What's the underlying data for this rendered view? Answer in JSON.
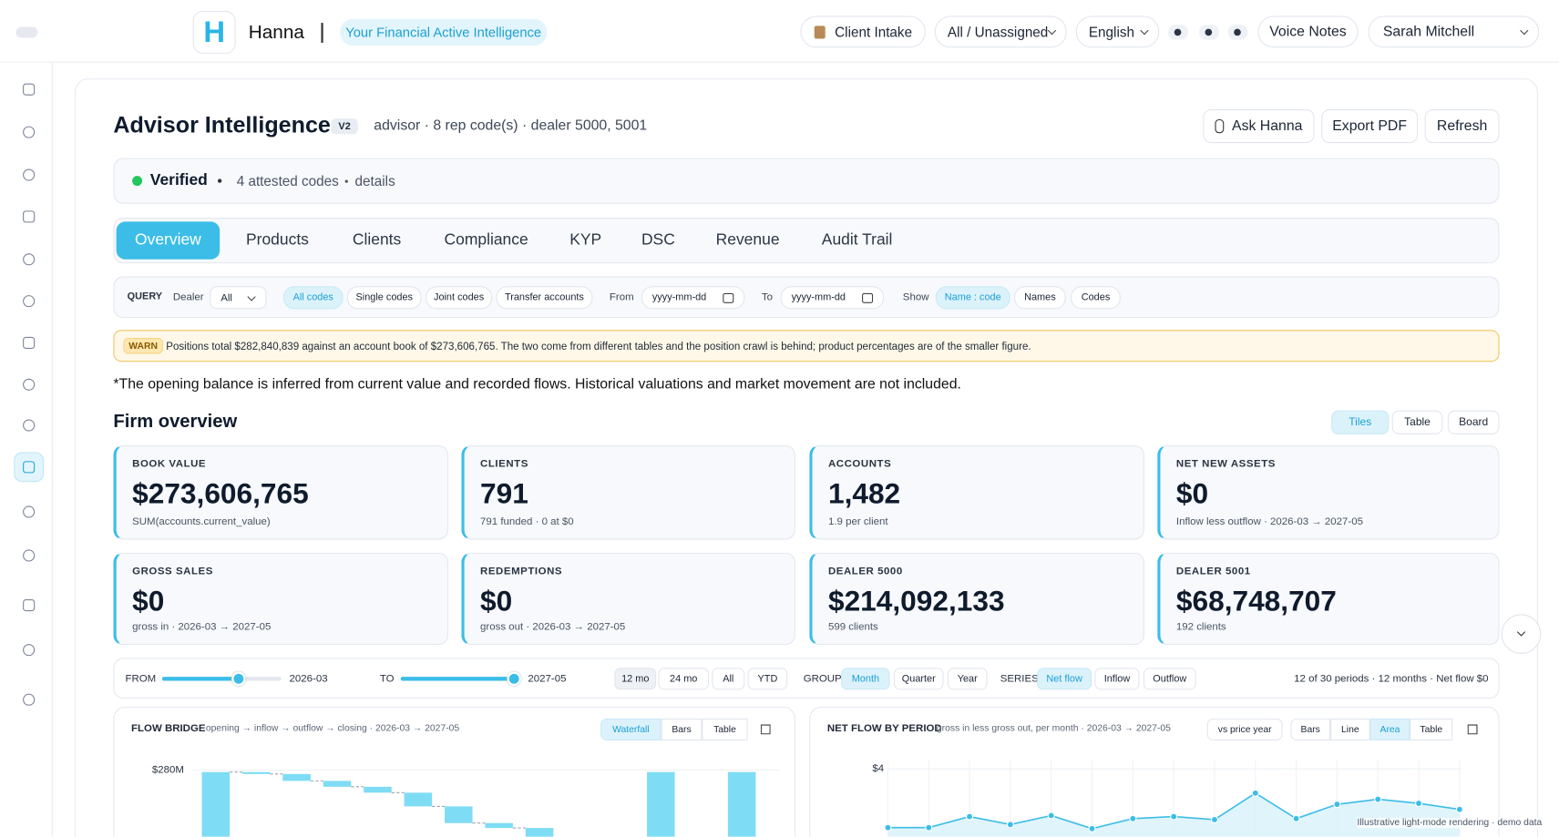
{
  "header": {
    "logo": "H",
    "app_name": "Hanna",
    "tagline": "Your Financial Active Intelligence",
    "client_intake": "Client Intake",
    "assignment": "All / Unassigned",
    "language": "English",
    "voice_notes": "Voice Notes",
    "user": "Sarah Mitchell"
  },
  "page": {
    "title": "Advisor Intelligence",
    "version": "V2",
    "subtitle": "advisor · 8 rep code(s) · dealer 5000, 5001",
    "actions": [
      "Ask Hanna",
      "Export PDF",
      "Refresh"
    ]
  },
  "verification": {
    "status": "Verified",
    "codes": "4 attested codes",
    "details": "details"
  },
  "tabs": {
    "items": [
      "Overview",
      "Products",
      "Clients",
      "Compliance",
      "KYP",
      "DSC",
      "Revenue",
      "Audit Trail"
    ],
    "active": 0
  },
  "query": {
    "label": "QUERY",
    "dealer_label": "Dealer",
    "dealer_value": "All",
    "code_filters": [
      "All codes",
      "Single codes",
      "Joint codes",
      "Transfer accounts"
    ],
    "code_filter_active": 0,
    "from_label": "From",
    "from_placeholder": "yyyy-mm-dd",
    "to_label": "To",
    "to_placeholder": "yyyy-mm-dd",
    "show_label": "Show",
    "show_options": [
      "Name : code",
      "Names",
      "Codes"
    ],
    "show_active": 0
  },
  "warning": {
    "tag": "WARN",
    "text": "Positions total $282,840,839 against an account book of $273,606,765. The two come from different tables and the position crawl is behind; product percentages are of the smaller figure."
  },
  "note": "*The opening balance is inferred from current value and recorded flows. Historical valuations and market movement are not included.",
  "overview": {
    "title": "Firm overview",
    "views": [
      "Tiles",
      "Table",
      "Board"
    ],
    "view_active": 0,
    "tiles": [
      {
        "label": "BOOK VALUE",
        "value": "$273,606,765",
        "detail": "SUM(accounts.current_value)"
      },
      {
        "label": "CLIENTS",
        "value": "791",
        "detail": "791 funded · 0 at $0"
      },
      {
        "label": "ACCOUNTS",
        "value": "1,482",
        "detail": "1.9 per client"
      },
      {
        "label": "NET NEW ASSETS",
        "value": "$0",
        "detail": "Inflow less outflow · 2026-03 → 2027-05"
      },
      {
        "label": "GROSS SALES",
        "value": "$0",
        "detail": "gross in · 2026-03 → 2027-05"
      },
      {
        "label": "REDEMPTIONS",
        "value": "$0",
        "detail": "gross out · 2026-03 → 2027-05"
      },
      {
        "label": "DEALER 5000",
        "value": "$214,092,133",
        "detail": "599 clients"
      },
      {
        "label": "DEALER 5001",
        "value": "$68,748,707",
        "detail": "192 clients"
      }
    ]
  },
  "period": {
    "from_label": "FROM",
    "from": "2026-03",
    "to_label": "TO",
    "to": "2027-05",
    "ranges": [
      "12 mo",
      "24 mo",
      "All",
      "YTD"
    ],
    "range_active": 0,
    "group_label": "GROUP",
    "groups": [
      "Month",
      "Quarter",
      "Year"
    ],
    "group_active": 0,
    "series_label": "SERIES",
    "series": [
      "Net flow",
      "Inflow",
      "Outflow"
    ],
    "series_active": 0,
    "summary": "12 of 30 periods · 12 months · Net flow $0"
  },
  "chart_data": [
    {
      "type": "waterfall",
      "title": "FLOW BRIDGE",
      "subtitle": "opening → inflow → outflow → closing · 2026-03 → 2027-05",
      "views": [
        "Waterfall",
        "Bars",
        "Table"
      ],
      "view_active": 0,
      "categories": [
        null,
        null,
        null,
        null,
        null,
        null,
        null,
        null,
        null,
        null,
        null,
        null,
        null,
        null
      ],
      "values": [
        279.5,
        -0.5,
        -1.75,
        -1.5,
        -1.5,
        -3.5,
        -4.25,
        -1.25,
        -2.5,
        null,
        null,
        279.5,
        null,
        279.5
      ],
      "bar_types": [
        "total",
        "change",
        "change",
        "change",
        "change",
        "change",
        "change",
        "change",
        "change",
        null,
        null,
        "total",
        null,
        "total"
      ],
      "color": "#7fdcf5",
      "ylim": [
        263,
        282.5
      ],
      "yticks": [
        {
          "value": 280,
          "label": "$280M"
        }
      ],
      "grid": true
    },
    {
      "type": "area",
      "title": "NET FLOW BY PERIOD",
      "subtitle": "gross in less gross out, per month · 2026-03 → 2027-05",
      "comparison": "vs price year",
      "views": [
        "Bars",
        "Line",
        "Area",
        "Table"
      ],
      "view_active": 2,
      "categories": [
        null,
        null,
        null,
        null,
        null,
        null,
        null,
        null,
        null,
        null,
        null,
        null,
        null,
        null,
        null
      ],
      "values": [
        0.54,
        0.54,
        1.19,
        0.72,
        1.25,
        0.48,
        1.07,
        1.19,
        1.01,
        2.57,
        1.07,
        1.91,
        2.21,
        1.97,
        1.61
      ],
      "color": "#3cbde8",
      "ylim": [
        0,
        4.5
      ],
      "yticks": [
        {
          "value": 4,
          "label": "$4"
        }
      ],
      "grid": true
    }
  ],
  "footer_note": "Illustrative light-mode rendering · demo data"
}
